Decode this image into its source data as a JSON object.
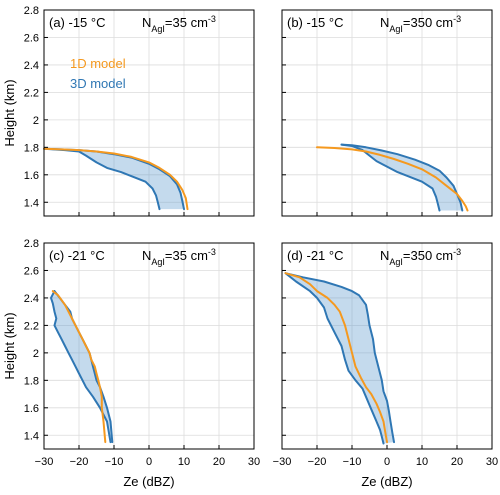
{
  "chart_data": [
    {
      "type": "line",
      "panel_label": "(a) -15 °C",
      "n_label": "N",
      "n_sub": "AgI",
      "n_value": "=35 cm",
      "n_exp": "-3",
      "xlim": [
        -30,
        30
      ],
      "ylim": [
        1.3,
        2.8
      ],
      "xticks": [
        -30,
        -20,
        -10,
        0,
        10,
        20,
        30
      ],
      "yticks": [
        1.4,
        1.6,
        1.8,
        2.0,
        2.2,
        2.4,
        2.6,
        2.8
      ],
      "ytick_labels": [
        "1.4",
        "1.6",
        "1.8",
        "2",
        "2.2",
        "2.4",
        "2.6",
        "2.8"
      ],
      "show_yticklabels": true,
      "show_xticklabels": false,
      "ylabel": "Height (km)",
      "xlabel": "",
      "legend": [
        {
          "label": "1D model",
          "color": "#f5991f"
        },
        {
          "label": "3D model",
          "color": "#2f77b4"
        }
      ],
      "series_1d": {
        "x": [
          -30,
          -25,
          -20,
          -15,
          -10,
          -5,
          0,
          3,
          6,
          8,
          9.5,
          10.5,
          11
        ],
        "y": [
          1.79,
          1.785,
          1.78,
          1.77,
          1.755,
          1.73,
          1.69,
          1.65,
          1.6,
          1.55,
          1.49,
          1.43,
          1.35
        ]
      },
      "series_3d_right": {
        "x": [
          -30,
          -25,
          -20,
          -15,
          -10,
          -5,
          0,
          3,
          6,
          8,
          9,
          9.5,
          10
        ],
        "y": [
          1.79,
          1.785,
          1.78,
          1.77,
          1.75,
          1.725,
          1.68,
          1.64,
          1.59,
          1.53,
          1.47,
          1.41,
          1.35
        ]
      },
      "series_3d_left": {
        "x": [
          -30,
          -24,
          -20,
          -18,
          -15,
          -12,
          -8,
          -5,
          -1,
          1,
          2,
          2.5,
          3
        ],
        "y": [
          1.79,
          1.78,
          1.77,
          1.74,
          1.69,
          1.65,
          1.62,
          1.59,
          1.55,
          1.5,
          1.45,
          1.4,
          1.35
        ]
      }
    },
    {
      "type": "line",
      "panel_label": "(b) -15 °C",
      "n_label": "N",
      "n_sub": "AgI",
      "n_value": "=350 cm",
      "n_exp": "-3",
      "xlim": [
        -30,
        30
      ],
      "ylim": [
        1.3,
        2.8
      ],
      "xticks": [
        -30,
        -20,
        -10,
        0,
        10,
        20,
        30
      ],
      "yticks": [
        1.4,
        1.6,
        1.8,
        2.0,
        2.2,
        2.4,
        2.6,
        2.8
      ],
      "show_yticklabels": false,
      "show_xticklabels": false,
      "series_1d": {
        "x": [
          -20,
          -15,
          -10,
          -6,
          -2,
          2,
          6,
          10,
          14,
          17,
          20,
          21.5,
          22.5,
          23
        ],
        "y": [
          1.8,
          1.795,
          1.785,
          1.77,
          1.745,
          1.715,
          1.68,
          1.64,
          1.58,
          1.52,
          1.46,
          1.41,
          1.37,
          1.34
        ]
      },
      "series_3d_right": {
        "x": [
          -13,
          -10,
          -6,
          -2,
          3,
          8,
          12,
          15,
          17,
          19,
          20,
          21,
          21.5
        ],
        "y": [
          1.82,
          1.815,
          1.8,
          1.78,
          1.75,
          1.71,
          1.67,
          1.63,
          1.58,
          1.52,
          1.46,
          1.4,
          1.34
        ]
      },
      "series_3d_left": {
        "x": [
          -13,
          -10,
          -7,
          -5,
          -3,
          0,
          3,
          6,
          10,
          13,
          14,
          14.5,
          15
        ],
        "y": [
          1.82,
          1.81,
          1.78,
          1.74,
          1.7,
          1.66,
          1.62,
          1.59,
          1.55,
          1.5,
          1.44,
          1.39,
          1.34
        ]
      }
    },
    {
      "type": "line",
      "panel_label": "(c) -21 °C",
      "n_label": "N",
      "n_sub": "AgI",
      "n_value": "=35 cm",
      "n_exp": "-3",
      "xlim": [
        -30,
        30
      ],
      "ylim": [
        1.3,
        2.8
      ],
      "xticks": [
        -30,
        -20,
        -10,
        0,
        10,
        20,
        30
      ],
      "xtick_labels": [
        "−30",
        "−20",
        "−10",
        "0",
        "10",
        "20",
        "30"
      ],
      "yticks": [
        1.4,
        1.6,
        1.8,
        2.0,
        2.2,
        2.4,
        2.6,
        2.8
      ],
      "ytick_labels": [
        "1.4",
        "1.6",
        "1.8",
        "2",
        "2.2",
        "2.4",
        "2.6",
        "2.8"
      ],
      "show_yticklabels": true,
      "show_xticklabels": true,
      "ylabel": "Height (km)",
      "xlabel": "Ze (dBZ)",
      "series_1d": {
        "x": [
          -27.5,
          -26,
          -24,
          -23,
          -22,
          -21,
          -20,
          -19,
          -18,
          -17,
          -16.5,
          -15.5,
          -15,
          -14.5,
          -14,
          -13.5,
          -13.5,
          -13,
          -12.5
        ],
        "y": [
          2.45,
          2.42,
          2.35,
          2.3,
          2.25,
          2.2,
          2.15,
          2.1,
          2.05,
          2.0,
          1.95,
          1.9,
          1.85,
          1.8,
          1.75,
          1.68,
          1.6,
          1.5,
          1.35
        ]
      },
      "series_3d_left": {
        "x": [
          -27,
          -28,
          -27.5,
          -27,
          -26.5,
          -27,
          -26,
          -25,
          -24,
          -23,
          -22,
          -21,
          -20,
          -19,
          -18,
          -16,
          -14,
          -12,
          -11
        ],
        "y": [
          2.45,
          2.4,
          2.36,
          2.3,
          2.25,
          2.2,
          2.15,
          2.1,
          2.05,
          2.0,
          1.95,
          1.9,
          1.85,
          1.8,
          1.75,
          1.68,
          1.6,
          1.5,
          1.35
        ]
      },
      "series_3d_right": {
        "x": [
          -27,
          -25.5,
          -24,
          -22.5,
          -22,
          -21,
          -20,
          -19,
          -18,
          -17,
          -16.5,
          -16,
          -15.5,
          -15,
          -14,
          -13,
          -12,
          -11,
          -10.5
        ],
        "y": [
          2.45,
          2.4,
          2.35,
          2.3,
          2.25,
          2.2,
          2.15,
          2.1,
          2.05,
          2.0,
          1.95,
          1.9,
          1.85,
          1.8,
          1.75,
          1.68,
          1.6,
          1.5,
          1.35
        ]
      }
    },
    {
      "type": "line",
      "panel_label": "(d) -21 °C",
      "n_label": "N",
      "n_sub": "AgI",
      "n_value": "=350 cm",
      "n_exp": "-3",
      "xlim": [
        -30,
        30
      ],
      "ylim": [
        1.3,
        2.8
      ],
      "xticks": [
        -30,
        -20,
        -10,
        0,
        10,
        20,
        30
      ],
      "xtick_labels": [
        "−30",
        "−20",
        "−10",
        "0",
        "10",
        "20",
        "30"
      ],
      "yticks": [
        1.4,
        1.6,
        1.8,
        2.0,
        2.2,
        2.4,
        2.6,
        2.8
      ],
      "show_yticklabels": false,
      "show_xticklabels": true,
      "xlabel": "Ze (dBZ)",
      "series_1d": {
        "x": [
          -29,
          -25,
          -22,
          -20,
          -17,
          -15,
          -13.5,
          -12,
          -11,
          -10,
          -9,
          -7.5,
          -6,
          -4.5,
          -3,
          -2,
          -1,
          -0.5,
          0
        ],
        "y": [
          2.58,
          2.55,
          2.5,
          2.45,
          2.4,
          2.35,
          2.3,
          2.2,
          2.1,
          2.0,
          1.9,
          1.82,
          1.75,
          1.7,
          1.63,
          1.57,
          1.5,
          1.42,
          1.35
        ]
      },
      "series_3d_right": {
        "x": [
          -29,
          -24,
          -18,
          -13,
          -10,
          -8,
          -6,
          -5.5,
          -5,
          -4,
          -3.5,
          -2.5,
          -1.5,
          -1,
          0,
          0.5,
          1,
          1.5,
          2
        ],
        "y": [
          2.58,
          2.55,
          2.52,
          2.48,
          2.45,
          2.42,
          2.35,
          2.28,
          2.2,
          2.1,
          2.0,
          1.9,
          1.8,
          1.72,
          1.65,
          1.58,
          1.5,
          1.42,
          1.35
        ]
      },
      "series_3d_left": {
        "x": [
          -29,
          -26,
          -22,
          -20,
          -18,
          -17,
          -15,
          -13,
          -12,
          -11,
          -9,
          -7,
          -6,
          -5,
          -4,
          -3,
          -2,
          -1.5,
          -1
        ],
        "y": [
          2.58,
          2.52,
          2.45,
          2.4,
          2.33,
          2.25,
          2.15,
          2.05,
          1.95,
          1.87,
          1.8,
          1.74,
          1.68,
          1.62,
          1.56,
          1.5,
          1.44,
          1.39,
          1.34
        ]
      }
    }
  ]
}
